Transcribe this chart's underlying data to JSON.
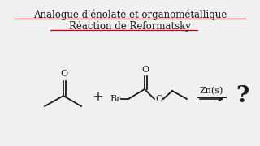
{
  "title_line1": "Analogue d'énolate et organométallique",
  "title_line2": "Réaction de Reformatsky",
  "background_color": "#f0f0f0",
  "text_color": "#1a1a1a",
  "underline_color": "#cc0000",
  "title_fontsize": 8.5,
  "arrow_label": "Zn(s)",
  "question_mark": "?",
  "figsize": [
    3.2,
    1.8
  ],
  "dpi": 100
}
